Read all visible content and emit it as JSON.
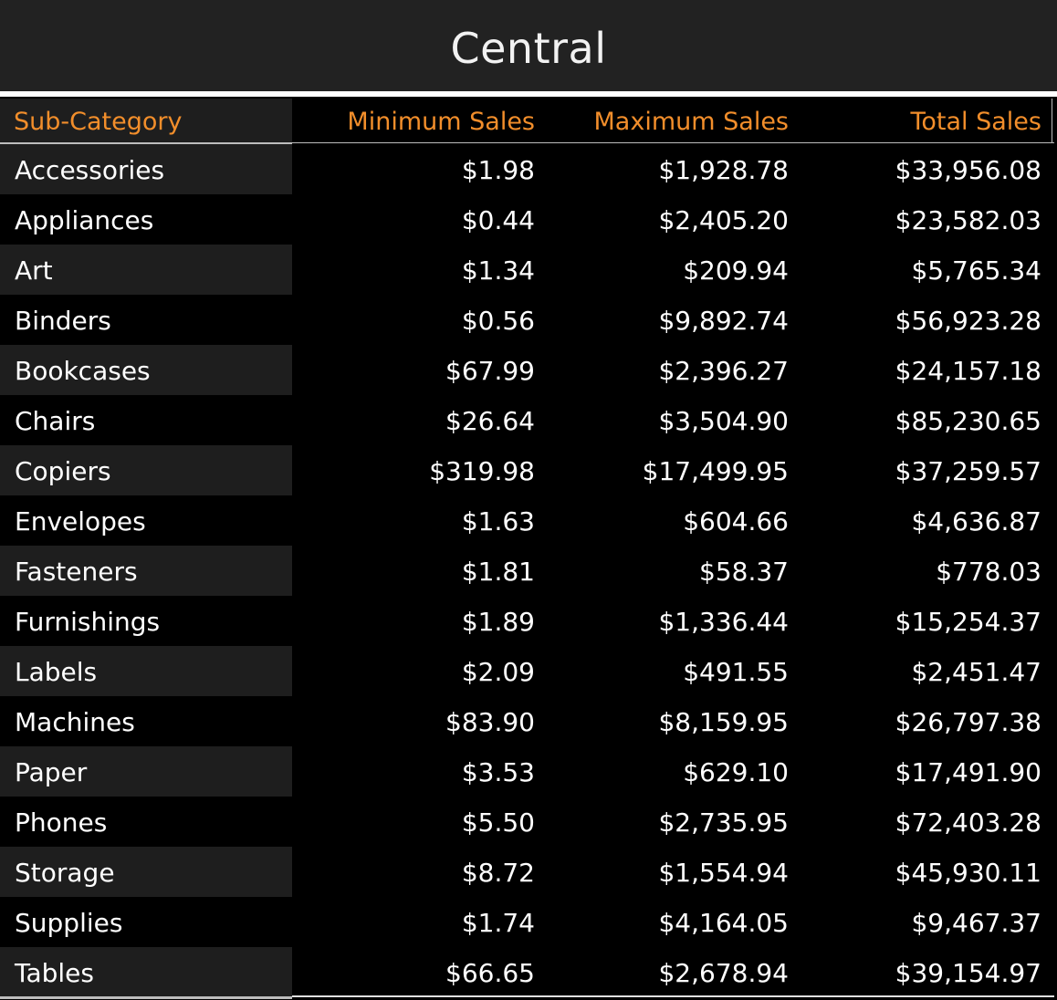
{
  "title": "Central",
  "colors": {
    "header_text": "#f28e2b",
    "title_bar_bg": "#222222",
    "label_alt_bg": "#1e1e1e",
    "body_text": "#ffffff",
    "background": "#000000"
  },
  "chart_data": {
    "type": "table",
    "title": "Central",
    "columns": [
      "Sub-Category",
      "Minimum Sales",
      "Maximum Sales",
      "Total Sales"
    ],
    "rows": [
      [
        "Accessories",
        "$1.98",
        "$1,928.78",
        "$33,956.08"
      ],
      [
        "Appliances",
        "$0.44",
        "$2,405.20",
        "$23,582.03"
      ],
      [
        "Art",
        "$1.34",
        "$209.94",
        "$5,765.34"
      ],
      [
        "Binders",
        "$0.56",
        "$9,892.74",
        "$56,923.28"
      ],
      [
        "Bookcases",
        "$67.99",
        "$2,396.27",
        "$24,157.18"
      ],
      [
        "Chairs",
        "$26.64",
        "$3,504.90",
        "$85,230.65"
      ],
      [
        "Copiers",
        "$319.98",
        "$17,499.95",
        "$37,259.57"
      ],
      [
        "Envelopes",
        "$1.63",
        "$604.66",
        "$4,636.87"
      ],
      [
        "Fasteners",
        "$1.81",
        "$58.37",
        "$778.03"
      ],
      [
        "Furnishings",
        "$1.89",
        "$1,336.44",
        "$15,254.37"
      ],
      [
        "Labels",
        "$2.09",
        "$491.55",
        "$2,451.47"
      ],
      [
        "Machines",
        "$83.90",
        "$8,159.95",
        "$26,797.38"
      ],
      [
        "Paper",
        "$3.53",
        "$629.10",
        "$17,491.90"
      ],
      [
        "Phones",
        "$5.50",
        "$2,735.95",
        "$72,403.28"
      ],
      [
        "Storage",
        "$8.72",
        "$1,554.94",
        "$45,930.11"
      ],
      [
        "Supplies",
        "$1.74",
        "$4,164.05",
        "$9,467.37"
      ],
      [
        "Tables",
        "$66.65",
        "$2,678.94",
        "$39,154.97"
      ]
    ]
  }
}
